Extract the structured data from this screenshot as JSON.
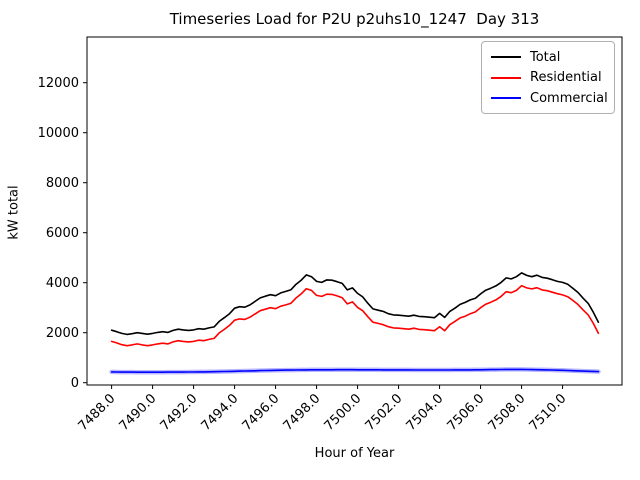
{
  "chart_data": {
    "type": "line",
    "title": "Timeseries Load for P2U p2uhs10_1247  Day 313",
    "xlabel": "Hour of Year",
    "ylabel": "kW total",
    "x_start": 7488.0,
    "x_step": 0.25,
    "xlim": [
      7486.8,
      7512.9
    ],
    "ylim": [
      -92,
      13828
    ],
    "grid": false,
    "legend_position": "upper right",
    "xtick_values": [
      7488,
      7490,
      7492,
      7494,
      7496,
      7498,
      7500,
      7502,
      7504,
      7506,
      7508,
      7510
    ],
    "xtick_labels": [
      "7488.0",
      "7490.0",
      "7492.0",
      "7494.0",
      "7496.0",
      "7498.0",
      "7500.0",
      "7502.0",
      "7504.0",
      "7506.0",
      "7508.0",
      "7510.0"
    ],
    "ytick_values": [
      0,
      2000,
      4000,
      6000,
      8000,
      10000,
      12000
    ],
    "ytick_labels": [
      "0",
      "2000",
      "4000",
      "6000",
      "8000",
      "10000",
      "12000"
    ],
    "series": [
      {
        "name": "Total",
        "color": "#000000",
        "halo": false,
        "values": [
          2100,
          2040,
          1970,
          1930,
          1960,
          2000,
          1970,
          1940,
          1970,
          2010,
          2040,
          2010,
          2090,
          2140,
          2110,
          2090,
          2110,
          2160,
          2140,
          2190,
          2230,
          2450,
          2600,
          2760,
          2980,
          3040,
          3020,
          3110,
          3250,
          3390,
          3460,
          3520,
          3480,
          3590,
          3650,
          3720,
          3940,
          4100,
          4310,
          4240,
          4050,
          4010,
          4110,
          4100,
          4040,
          3970,
          3710,
          3790,
          3570,
          3430,
          3180,
          2950,
          2900,
          2850,
          2760,
          2710,
          2700,
          2680,
          2660,
          2700,
          2650,
          2640,
          2620,
          2600,
          2770,
          2610,
          2850,
          2980,
          3130,
          3210,
          3310,
          3380,
          3550,
          3700,
          3780,
          3870,
          4010,
          4190,
          4150,
          4240,
          4390,
          4290,
          4240,
          4300,
          4210,
          4180,
          4120,
          4050,
          4010,
          3940,
          3780,
          3610,
          3380,
          3170,
          2820,
          2420
        ]
      },
      {
        "name": "Residential",
        "color": "#ff0000",
        "halo": false,
        "values": [
          1650,
          1590,
          1520,
          1480,
          1510,
          1550,
          1510,
          1480,
          1510,
          1550,
          1580,
          1550,
          1630,
          1680,
          1650,
          1630,
          1650,
          1700,
          1680,
          1730,
          1770,
          1990,
          2130,
          2290,
          2500,
          2550,
          2530,
          2620,
          2750,
          2880,
          2940,
          3000,
          2960,
          3060,
          3110,
          3180,
          3390,
          3550,
          3760,
          3690,
          3490,
          3450,
          3540,
          3530,
          3470,
          3400,
          3150,
          3230,
          3010,
          2880,
          2640,
          2420,
          2370,
          2320,
          2240,
          2190,
          2180,
          2160,
          2140,
          2180,
          2130,
          2120,
          2100,
          2080,
          2240,
          2080,
          2320,
          2450,
          2590,
          2660,
          2760,
          2830,
          3000,
          3140,
          3220,
          3310,
          3450,
          3640,
          3600,
          3690,
          3880,
          3790,
          3750,
          3800,
          3710,
          3680,
          3620,
          3560,
          3510,
          3440,
          3290,
          3130,
          2910,
          2710,
          2370,
          1980
        ]
      },
      {
        "name": "Commercial",
        "color": "#0000ff",
        "halo": true,
        "values": [
          430,
          428,
          426,
          424,
          422,
          421,
          420,
          420,
          420,
          420,
          421,
          422,
          423,
          424,
          425,
          427,
          429,
          431,
          434,
          437,
          440,
          444,
          448,
          453,
          458,
          463,
          468,
          473,
          478,
          483,
          488,
          492,
          496,
          500,
          503,
          506,
          509,
          511,
          513,
          515,
          516,
          517,
          518,
          518,
          519,
          519,
          519,
          519,
          518,
          518,
          517,
          516,
          515,
          514,
          513,
          512,
          511,
          510,
          510,
          509,
          509,
          508,
          508,
          508,
          508,
          508,
          509,
          510,
          511,
          512,
          514,
          516,
          518,
          520,
          523,
          526,
          528,
          530,
          531,
          531,
          530,
          528,
          525,
          521,
          517,
          512,
          507,
          501,
          495,
          488,
          481,
          474,
          466,
          458,
          450,
          442
        ]
      }
    ]
  }
}
